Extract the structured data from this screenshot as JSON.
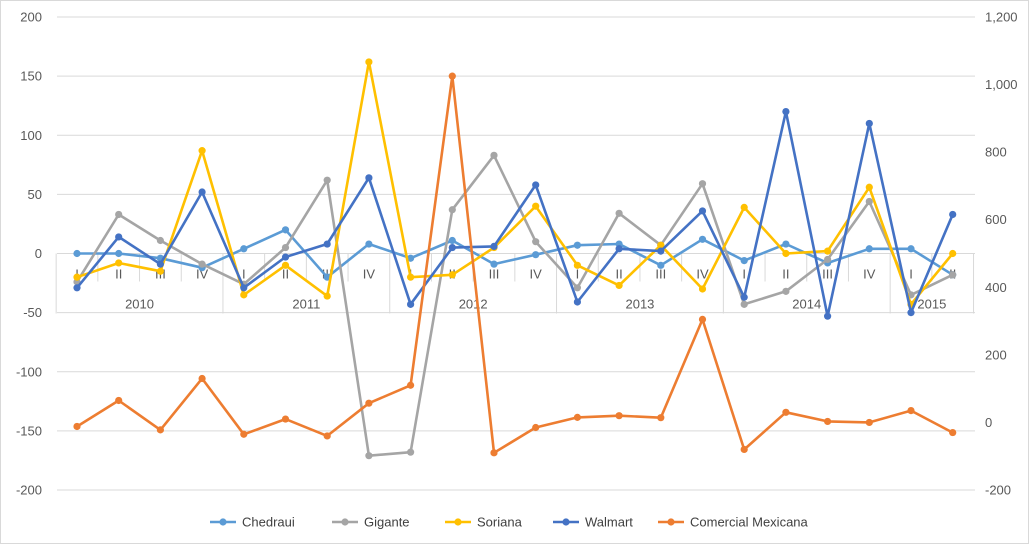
{
  "chart_data": {
    "type": "line",
    "title": "",
    "categories": [
      {
        "quarter": "I",
        "year": "2010"
      },
      {
        "quarter": "II",
        "year": "2010"
      },
      {
        "quarter": "III",
        "year": "2010"
      },
      {
        "quarter": "IV",
        "year": "2010"
      },
      {
        "quarter": "I",
        "year": "2011"
      },
      {
        "quarter": "II",
        "year": "2011"
      },
      {
        "quarter": "III",
        "year": "2011"
      },
      {
        "quarter": "IV",
        "year": "2011"
      },
      {
        "quarter": "I",
        "year": "2012"
      },
      {
        "quarter": "II",
        "year": "2012"
      },
      {
        "quarter": "III",
        "year": "2012"
      },
      {
        "quarter": "IV",
        "year": "2012"
      },
      {
        "quarter": "I",
        "year": "2013"
      },
      {
        "quarter": "II",
        "year": "2013"
      },
      {
        "quarter": "III",
        "year": "2013"
      },
      {
        "quarter": "IV",
        "year": "2013"
      },
      {
        "quarter": "I",
        "year": "2014"
      },
      {
        "quarter": "II",
        "year": "2014"
      },
      {
        "quarter": "III",
        "year": "2014"
      },
      {
        "quarter": "IV",
        "year": "2014"
      },
      {
        "quarter": "I",
        "year": "2015"
      },
      {
        "quarter": "II",
        "year": "2015"
      }
    ],
    "years": [
      "2010",
      "2011",
      "2012",
      "2013",
      "2014",
      "2015"
    ],
    "y_left": {
      "min": -200,
      "max": 200,
      "ticks": [
        "200",
        "150",
        "100",
        "50",
        "0",
        "-50",
        "-100",
        "-150",
        "-200"
      ]
    },
    "y_right": {
      "min": -200,
      "max": 1200,
      "ticks": [
        "1,200",
        "1,000",
        "800",
        "600",
        "400",
        "200",
        "0",
        "-200"
      ]
    },
    "grid": true,
    "legend_position": "bottom",
    "series": [
      {
        "name": "Chedraui",
        "color": "#5B9BD5",
        "axis": "left",
        "values": [
          0,
          0,
          -4,
          -12,
          4,
          20,
          -20,
          8,
          -4,
          11,
          -9,
          -1,
          7,
          8,
          -10,
          12,
          -6,
          8,
          -8,
          4,
          4,
          -18
        ]
      },
      {
        "name": "Gigante",
        "color": "#A5A5A5",
        "axis": "left",
        "values": [
          -24,
          33,
          11,
          -9,
          -26,
          5,
          62,
          -171,
          -168,
          37,
          83,
          10,
          -29,
          34,
          7,
          59,
          -43,
          -32,
          -5,
          44,
          -35,
          -18
        ]
      },
      {
        "name": "Soriana",
        "color": "#FFC000",
        "axis": "left",
        "values": [
          -20,
          -8,
          -15,
          87,
          -35,
          -10,
          -36,
          162,
          -20,
          -18,
          5,
          40,
          -10,
          -27,
          7,
          -30,
          39,
          0,
          2,
          56,
          -43,
          0
        ]
      },
      {
        "name": "Walmart",
        "color": "#4472C4",
        "axis": "left",
        "values": [
          -29,
          14,
          -9,
          52,
          -29,
          -3,
          8,
          64,
          -43,
          5,
          6,
          58,
          -41,
          4,
          2,
          36,
          -37,
          120,
          -53,
          110,
          -50,
          33
        ]
      },
      {
        "name": "Comercial Mexicana",
        "color": "#ED7D31",
        "axis": "right",
        "values": [
          -12,
          65,
          -22,
          130,
          -35,
          10,
          -40,
          57,
          110,
          1025,
          -90,
          -15,
          15,
          20,
          14,
          305,
          -80,
          30,
          3,
          0,
          35,
          -30
        ]
      }
    ]
  }
}
